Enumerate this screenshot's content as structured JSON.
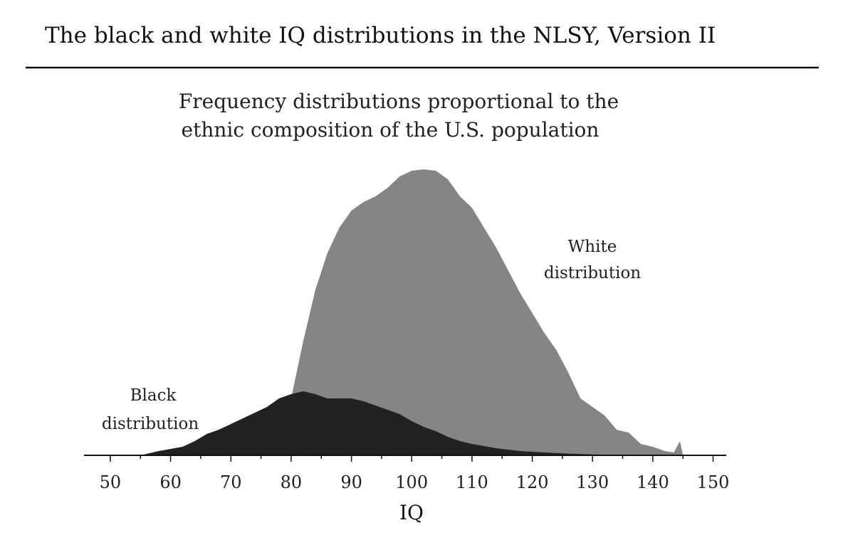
{
  "chart_data": {
    "type": "area",
    "title": "The black and white IQ distributions in the NLSY, Version II",
    "subtitle_lines": [
      "Frequency distributions proportional to the",
      "ethnic composition of the U.S. population"
    ],
    "xlabel": "IQ",
    "ylabel": "",
    "xlim": [
      48,
      151
    ],
    "ylim": [
      0,
      100
    ],
    "x_ticks": [
      50,
      60,
      70,
      80,
      90,
      100,
      110,
      120,
      130,
      140,
      150
    ],
    "grid": false,
    "legend": "none",
    "series": [
      {
        "name": "White distribution",
        "color": "#858585",
        "x": [
          58,
          62,
          66,
          70,
          74,
          78,
          80,
          82,
          84,
          86,
          88,
          90,
          92,
          94,
          96,
          98,
          100,
          102,
          104,
          106,
          108,
          110,
          112,
          114,
          116,
          118,
          120,
          122,
          124,
          126,
          128,
          130,
          132,
          134,
          136,
          138,
          140,
          142,
          143.5,
          144.5,
          145
        ],
        "values": [
          0,
          0.5,
          2,
          4,
          7,
          12,
          20,
          40,
          58,
          71,
          80,
          86,
          89,
          91,
          94,
          98,
          100,
          100.5,
          100,
          97,
          91,
          87,
          80,
          73,
          65,
          57,
          50,
          43,
          37,
          29,
          20,
          17,
          14,
          9,
          8,
          4,
          3,
          1.5,
          1,
          5,
          0
        ]
      },
      {
        "name": "Black distribution",
        "color": "#222222",
        "x": [
          55,
          58,
          62,
          64,
          66,
          68,
          70,
          72,
          74,
          76,
          78,
          80,
          82,
          84,
          86,
          88,
          90,
          92,
          94,
          96,
          98,
          100,
          102,
          104,
          106,
          108,
          110,
          114,
          118,
          122,
          126,
          130,
          134,
          138
        ],
        "values": [
          0,
          1.5,
          3,
          5,
          7.5,
          9,
          11,
          13,
          15,
          17,
          20,
          21.5,
          22.5,
          21.5,
          20,
          20,
          20,
          19,
          17.5,
          16,
          14.5,
          12,
          10,
          8.5,
          6.5,
          5,
          4,
          2.5,
          1.5,
          1,
          0.6,
          0.3,
          0.1,
          0
        ]
      }
    ],
    "annotations": [
      {
        "series": "White distribution",
        "lines": [
          "White",
          "distribution"
        ]
      },
      {
        "series": "Black distribution",
        "lines": [
          "Black",
          "distribution"
        ]
      }
    ]
  }
}
